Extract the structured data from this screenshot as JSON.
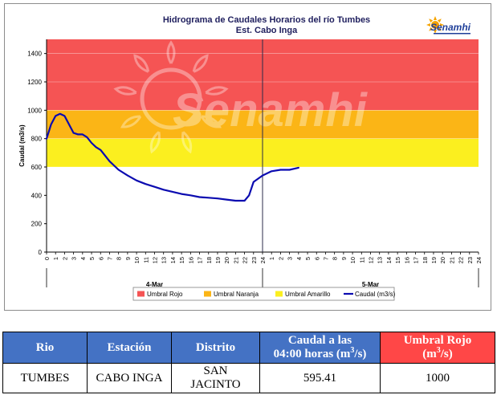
{
  "chart_data": {
    "type": "line",
    "title": "Hidrograma de Caudales Horarios del río Tumbes",
    "subtitle": "Est. Cabo Inga",
    "ylabel": "Caudal  (m3/s)",
    "ylim": [
      0,
      1500
    ],
    "yticks": [
      0,
      200,
      400,
      600,
      800,
      1000,
      1200,
      1400
    ],
    "xlim": [
      0,
      48
    ],
    "xtick_labels": [
      "0",
      "1",
      "2",
      "3",
      "4",
      "5",
      "6",
      "7",
      "8",
      "9",
      "10",
      "11",
      "12",
      "13",
      "14",
      "15",
      "16",
      "17",
      "18",
      "19",
      "20",
      "21",
      "22",
      "23",
      "24",
      "1",
      "2",
      "3",
      "4",
      "5",
      "6",
      "7",
      "8",
      "9",
      "10",
      "11",
      "12",
      "13",
      "14",
      "15",
      "16",
      "17",
      "18",
      "19",
      "20",
      "21",
      "22",
      "23",
      "24"
    ],
    "days": [
      {
        "label": "4-Mar",
        "from": 0,
        "to": 24
      },
      {
        "label": "5-Mar",
        "from": 24,
        "to": 48
      }
    ],
    "current_time_x": 24,
    "thresholds": [
      {
        "name": "Umbral Rojo",
        "from": 1000,
        "to": 1500,
        "color": "#f55454"
      },
      {
        "name": "Umbral Naranja",
        "from": 800,
        "to": 1000,
        "color": "#fbb516"
      },
      {
        "name": "Umbral Amarillo",
        "from": 600,
        "to": 800,
        "color": "#fbef1f"
      }
    ],
    "series": [
      {
        "name": "Caudal (m3/s)",
        "color": "#0b0bb0",
        "x": [
          0,
          0.5,
          1,
          1.5,
          2,
          2.5,
          3,
          3.5,
          4,
          4.5,
          5,
          5.5,
          6,
          7,
          8,
          9,
          10,
          11,
          12,
          13,
          14,
          15,
          16,
          17,
          18,
          19,
          20,
          21,
          22,
          22.5,
          23,
          24,
          25,
          26,
          27,
          28
        ],
        "y": [
          800,
          900,
          960,
          975,
          960,
          900,
          840,
          830,
          830,
          810,
          770,
          740,
          720,
          640,
          580,
          540,
          505,
          480,
          460,
          440,
          425,
          410,
          400,
          388,
          383,
          378,
          370,
          362,
          362,
          400,
          495,
          540,
          570,
          580,
          580,
          595
        ]
      }
    ],
    "legend": [
      {
        "label": "Umbral Rojo",
        "kind": "box",
        "color": "#f55454"
      },
      {
        "label": "Umbral Naranja",
        "kind": "box",
        "color": "#fbb516"
      },
      {
        "label": "Umbral Amarillo",
        "kind": "box",
        "color": "#fbef1f"
      },
      {
        "label": "Caudal (m3/s)",
        "kind": "line",
        "color": "#0b0bb0"
      }
    ],
    "legend_position": "bottom",
    "watermark": "Senamhi"
  },
  "logo": {
    "text": "Senamhi"
  },
  "table": {
    "headers": {
      "rio": "Rio",
      "estacion": "Estación",
      "distrito": "Distrito",
      "caudal_line1": "Caudal a las",
      "caudal_line2": "04:00 horas (m",
      "caudal_sup": "3",
      "caudal_end": "/s)",
      "umbral_line1": "Umbral Rojo",
      "umbral_line2_start": "(m",
      "umbral_sup": "3",
      "umbral_line2_end": "/s)"
    },
    "row": {
      "rio": "TUMBES",
      "estacion": "CABO INGA",
      "distrito_line1": "SAN",
      "distrito_line2": "JACINTO",
      "caudal": "595.41",
      "umbral": "1000"
    }
  }
}
